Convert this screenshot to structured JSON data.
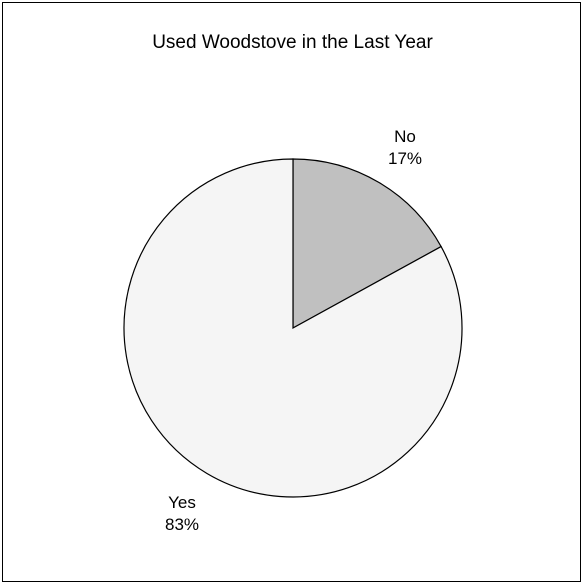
{
  "chart_data": {
    "type": "pie",
    "title": "Used Woodstove in the Last Year",
    "slices": [
      {
        "label": "No",
        "value": 17,
        "percent_label": "17%",
        "color": "#c0c0c0"
      },
      {
        "label": "Yes",
        "value": 83,
        "percent_label": "83%",
        "color": "#f5f5f5"
      }
    ],
    "start": "12 o'clock, clockwise",
    "legend": "none",
    "edge_color": "#000000"
  }
}
